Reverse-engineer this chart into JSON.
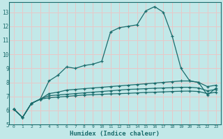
{
  "xlabel": "Humidex (Indice chaleur)",
  "bg_color": "#c2e8e8",
  "grid_color": "#e8c8c8",
  "line_color": "#1a6b6b",
  "x_values": [
    0,
    1,
    2,
    3,
    4,
    5,
    6,
    7,
    8,
    9,
    10,
    11,
    12,
    13,
    14,
    15,
    16,
    17,
    18,
    19,
    20,
    21,
    22,
    23
  ],
  "series1": [
    6.1,
    5.5,
    6.5,
    6.8,
    8.1,
    8.5,
    9.1,
    9.0,
    9.2,
    9.3,
    9.5,
    11.6,
    11.9,
    12.0,
    12.1,
    13.1,
    13.4,
    13.0,
    11.3,
    9.0,
    8.1,
    8.0,
    7.1,
    7.6
  ],
  "series2": [
    6.1,
    5.5,
    6.5,
    6.8,
    7.2,
    7.3,
    7.45,
    7.5,
    7.55,
    7.6,
    7.65,
    7.7,
    7.75,
    7.8,
    7.85,
    7.9,
    7.95,
    8.0,
    8.05,
    8.1,
    8.1,
    8.0,
    7.7,
    7.8
  ],
  "series3": [
    6.1,
    5.5,
    6.5,
    6.8,
    7.05,
    7.1,
    7.15,
    7.2,
    7.25,
    7.3,
    7.35,
    7.4,
    7.45,
    7.5,
    7.52,
    7.55,
    7.58,
    7.6,
    7.62,
    7.65,
    7.65,
    7.6,
    7.4,
    7.5
  ],
  "series4": [
    6.1,
    5.5,
    6.5,
    6.8,
    6.9,
    6.95,
    7.0,
    7.05,
    7.1,
    7.12,
    7.15,
    7.18,
    7.2,
    7.22,
    7.25,
    7.28,
    7.3,
    7.32,
    7.35,
    7.37,
    7.38,
    7.35,
    7.2,
    7.3
  ],
  "ylim": [
    5,
    13.7
  ],
  "xlim": [
    -0.5,
    23.5
  ],
  "yticks": [
    5,
    6,
    7,
    8,
    9,
    10,
    11,
    12,
    13
  ],
  "xticks": [
    0,
    1,
    2,
    3,
    4,
    5,
    6,
    7,
    8,
    9,
    10,
    11,
    12,
    13,
    14,
    15,
    16,
    17,
    18,
    19,
    20,
    21,
    22,
    23
  ]
}
